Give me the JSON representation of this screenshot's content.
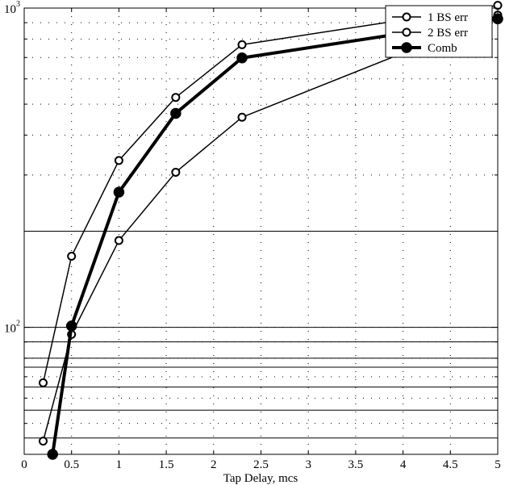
{
  "chart_data": {
    "type": "line",
    "title": "",
    "xlabel": "Tap Delay, mcs",
    "ylabel": "",
    "xlim": [
      0,
      5
    ],
    "ylim": [
      40,
      1000
    ],
    "yscale": "log",
    "grid": "dotted",
    "legend_position": "top-right",
    "x_ticks": [
      0,
      0.5,
      1,
      1.5,
      2,
      2.5,
      3,
      3.5,
      4,
      4.5,
      5
    ],
    "x_tick_labels": [
      "0",
      "0.5",
      "1",
      "1.5",
      "2",
      "2.5",
      "3",
      "3.5",
      "4",
      "4.5",
      "5"
    ],
    "y_decade_ticks": [
      {
        "value": 100,
        "base": "10",
        "exponent": "2"
      },
      {
        "value": 1000,
        "base": "10",
        "exponent": "3"
      }
    ],
    "y_minor_ticks": [
      40,
      50,
      60,
      70,
      80,
      90,
      200,
      300,
      400,
      500,
      600,
      700,
      800,
      900
    ],
    "horizontal_lines": [
      45,
      55,
      65,
      75,
      80,
      90,
      100,
      200
    ],
    "series": [
      {
        "name": "1 BS err",
        "x": [
          0.2,
          0.5,
          1.0,
          1.6,
          2.3,
          5.0
        ],
        "y": [
          67,
          167,
          333,
          525,
          768,
          1020
        ],
        "marker": "open-circle",
        "linewidth": 1.5
      },
      {
        "name": "2 BS err",
        "x": [
          0.2,
          0.5,
          1.0,
          1.6,
          2.3,
          5.0
        ],
        "y": [
          44,
          95,
          187,
          306,
          455,
          950
        ],
        "marker": "open-circle",
        "linewidth": 1.5
      },
      {
        "name": "Comb",
        "x": [
          0.3,
          0.5,
          1.0,
          1.6,
          2.3,
          5.0
        ],
        "y": [
          40,
          101,
          265,
          468,
          698,
          925
        ],
        "marker": "filled-circle",
        "linewidth": 4
      }
    ]
  }
}
